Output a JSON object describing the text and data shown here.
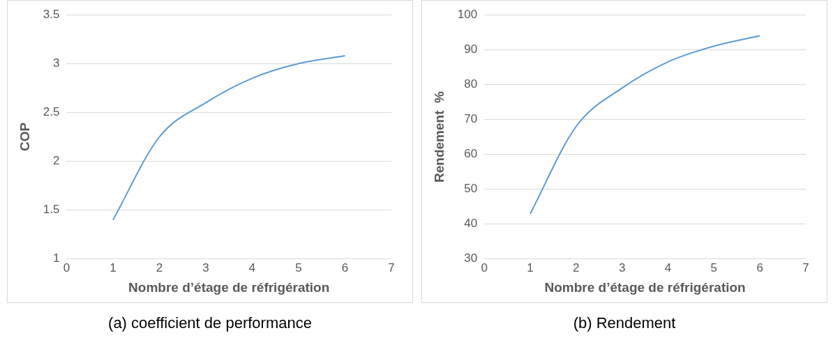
{
  "chart_data": [
    {
      "type": "line",
      "xlabel": "Nombre d’étage de réfrigération",
      "ylabel": "COP",
      "x": [
        1,
        2,
        3,
        4,
        5,
        6
      ],
      "series": [
        {
          "color": "#5b9bd5",
          "values": [
            1.4,
            2.25,
            2.6,
            2.85,
            3.0,
            3.08
          ]
        }
      ],
      "xlim": [
        0,
        7
      ],
      "xticks": [
        0,
        1,
        2,
        3,
        4,
        5,
        6,
        7
      ],
      "ylim": [
        1,
        3.5
      ],
      "yticks": [
        1,
        1.5,
        2,
        2.5,
        3,
        3.5
      ],
      "grid": "y",
      "marker": "none",
      "legend": false,
      "annotations": [
        "(a) coefficient de performance"
      ]
    },
    {
      "type": "line",
      "xlabel": "Nombre d’étage de réfrigération",
      "ylabel": "Rendement  %",
      "x": [
        1,
        2,
        3,
        4,
        5,
        6
      ],
      "series": [
        {
          "color": "#5b9bd5",
          "values": [
            43,
            68,
            79,
            86.5,
            91,
            94
          ]
        }
      ],
      "xlim": [
        0,
        7
      ],
      "xticks": [
        0,
        1,
        2,
        3,
        4,
        5,
        6,
        7
      ],
      "ylim": [
        30,
        100
      ],
      "yticks": [
        30,
        40,
        50,
        60,
        70,
        80,
        90,
        100
      ],
      "grid": "y",
      "marker": "none",
      "legend": false,
      "annotations": [
        "(b) Rendement"
      ]
    }
  ]
}
